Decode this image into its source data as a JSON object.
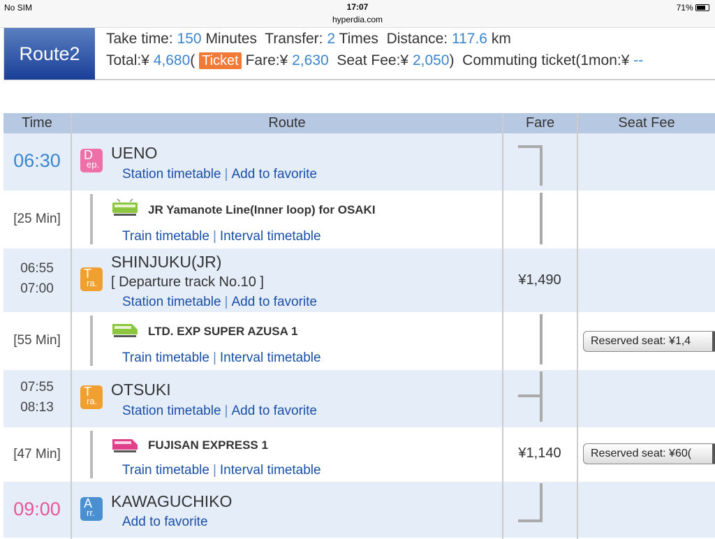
{
  "status_bar": {
    "carrier": "No SIM",
    "time": "17:07",
    "url": "hyperdia.com",
    "battery": "71%"
  },
  "summary": {
    "route_label": "Route2",
    "take_time_label": "Take time:",
    "take_time": "150",
    "take_time_unit": "Minutes",
    "transfer_label": "Transfer:",
    "transfer": "2",
    "transfer_unit": "Times",
    "distance_label": "Distance:",
    "distance": "117.6",
    "distance_unit": "km",
    "total_label": "Total:¥",
    "total": "4,680",
    "paren_open": "(",
    "ticket_badge": "Ticket",
    "fare_label": "Fare:¥",
    "fare": "2,630",
    "seat_fee_label": "Seat Fee:¥",
    "seat_fee": "2,050",
    "paren_close": ")",
    "commuting_label": "Commuting ticket(1mon:¥",
    "commuting_value": "--"
  },
  "table": {
    "headers": [
      "Time",
      "Route",
      "Fare",
      "Seat Fee"
    ],
    "links": {
      "station_timetable": "Station timetable",
      "add_favorite": "Add to favorite",
      "train_timetable": "Train timetable",
      "interval_timetable": "Interval timetable",
      "sep": "|"
    },
    "stations": [
      {
        "time": "06:30",
        "badge_top": "D",
        "badge_bottom": "ep.",
        "badge_color": "#ef6fa8",
        "name": "UENO"
      },
      {
        "time_arr": "06:55",
        "time_dep": "07:00",
        "badge_top": "T",
        "badge_bottom": "ra.",
        "badge_color": "#f0a030",
        "name": "SHINJUKU(JR)",
        "track": "[ Departure track No.10 ]",
        "fare": "¥1,490"
      },
      {
        "time_arr": "07:55",
        "time_dep": "08:13",
        "badge_top": "T",
        "badge_bottom": "ra.",
        "badge_color": "#f0a030",
        "name": "OTSUKI"
      },
      {
        "time": "09:00",
        "badge_top": "A",
        "badge_bottom": "rr.",
        "badge_color": "#4a90d0",
        "name": "KAWAGUCHIKO"
      }
    ],
    "segments": [
      {
        "duration": "[25 Min]",
        "line": "JR Yamanote Line(Inner loop)  for OSAKI",
        "train_color": "#8cc63f"
      },
      {
        "duration": "[55 Min]",
        "line": "LTD. EXP SUPER AZUSA 1",
        "train_color": "#8cc63f",
        "seat_select": "Reserved seat: ¥1,4"
      },
      {
        "duration": "[47 Min]",
        "line": "FUJISAN EXPRESS 1",
        "train_color": "#e0408a",
        "fare": "¥1,140",
        "seat_select": "Reserved seat: ¥60("
      }
    ]
  }
}
